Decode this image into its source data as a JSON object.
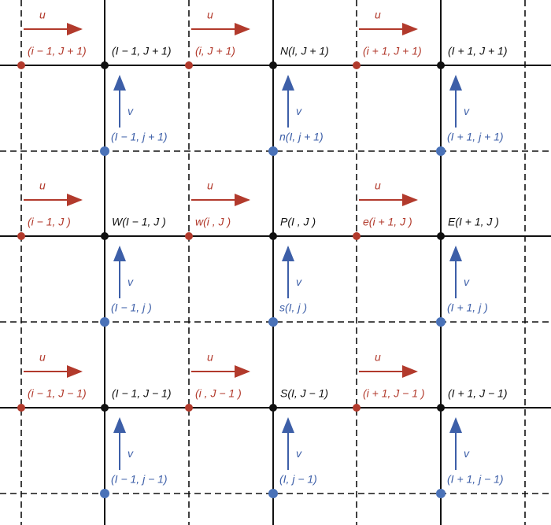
{
  "rows": [
    {
      "u": [
        {
          "symbol": "u",
          "label": "(i − 1, J + 1)"
        },
        {
          "symbol": "u",
          "label": "(i, J + 1)"
        },
        {
          "symbol": "u",
          "label": "(i + 1, J + 1)"
        }
      ],
      "nodes": [
        "(I − 1, J + 1)",
        "N(I, J + 1)",
        "(I + 1, J + 1)"
      ],
      "v": [
        {
          "symbol": "v",
          "label": "(I − 1, j + 1)"
        },
        {
          "symbol": "v",
          "label": "n(I, j + 1)"
        },
        {
          "symbol": "v",
          "label": "(I + 1, j + 1)"
        }
      ]
    },
    {
      "u": [
        {
          "symbol": "u",
          "label": "(i − 1, J )"
        },
        {
          "symbol": "u",
          "label": "w(i , J )"
        },
        {
          "symbol": "u",
          "label": "e(i + 1, J )"
        }
      ],
      "nodes": [
        "W(I − 1, J )",
        "P(I , J )",
        "E(I + 1, J )"
      ],
      "v": [
        {
          "symbol": "v",
          "label": "(I − 1, j )"
        },
        {
          "symbol": "v",
          "label": "s(I, j )"
        },
        {
          "symbol": "v",
          "label": "(I + 1, j )"
        }
      ]
    },
    {
      "u": [
        {
          "symbol": "u",
          "label": "(i − 1, J − 1)"
        },
        {
          "symbol": "u",
          "label": "(i , J − 1 )"
        },
        {
          "symbol": "u",
          "label": "(i + 1, J − 1 )"
        }
      ],
      "nodes": [
        "(I − 1, J − 1)",
        "S(I, J − 1)",
        "(I + 1, J − 1)"
      ],
      "v": [
        {
          "symbol": "v",
          "label": "(I − 1, j − 1)"
        },
        {
          "symbol": "v",
          "label": "(I, j − 1)"
        },
        {
          "symbol": "v",
          "label": "(I + 1, j − 1)"
        }
      ]
    }
  ]
}
